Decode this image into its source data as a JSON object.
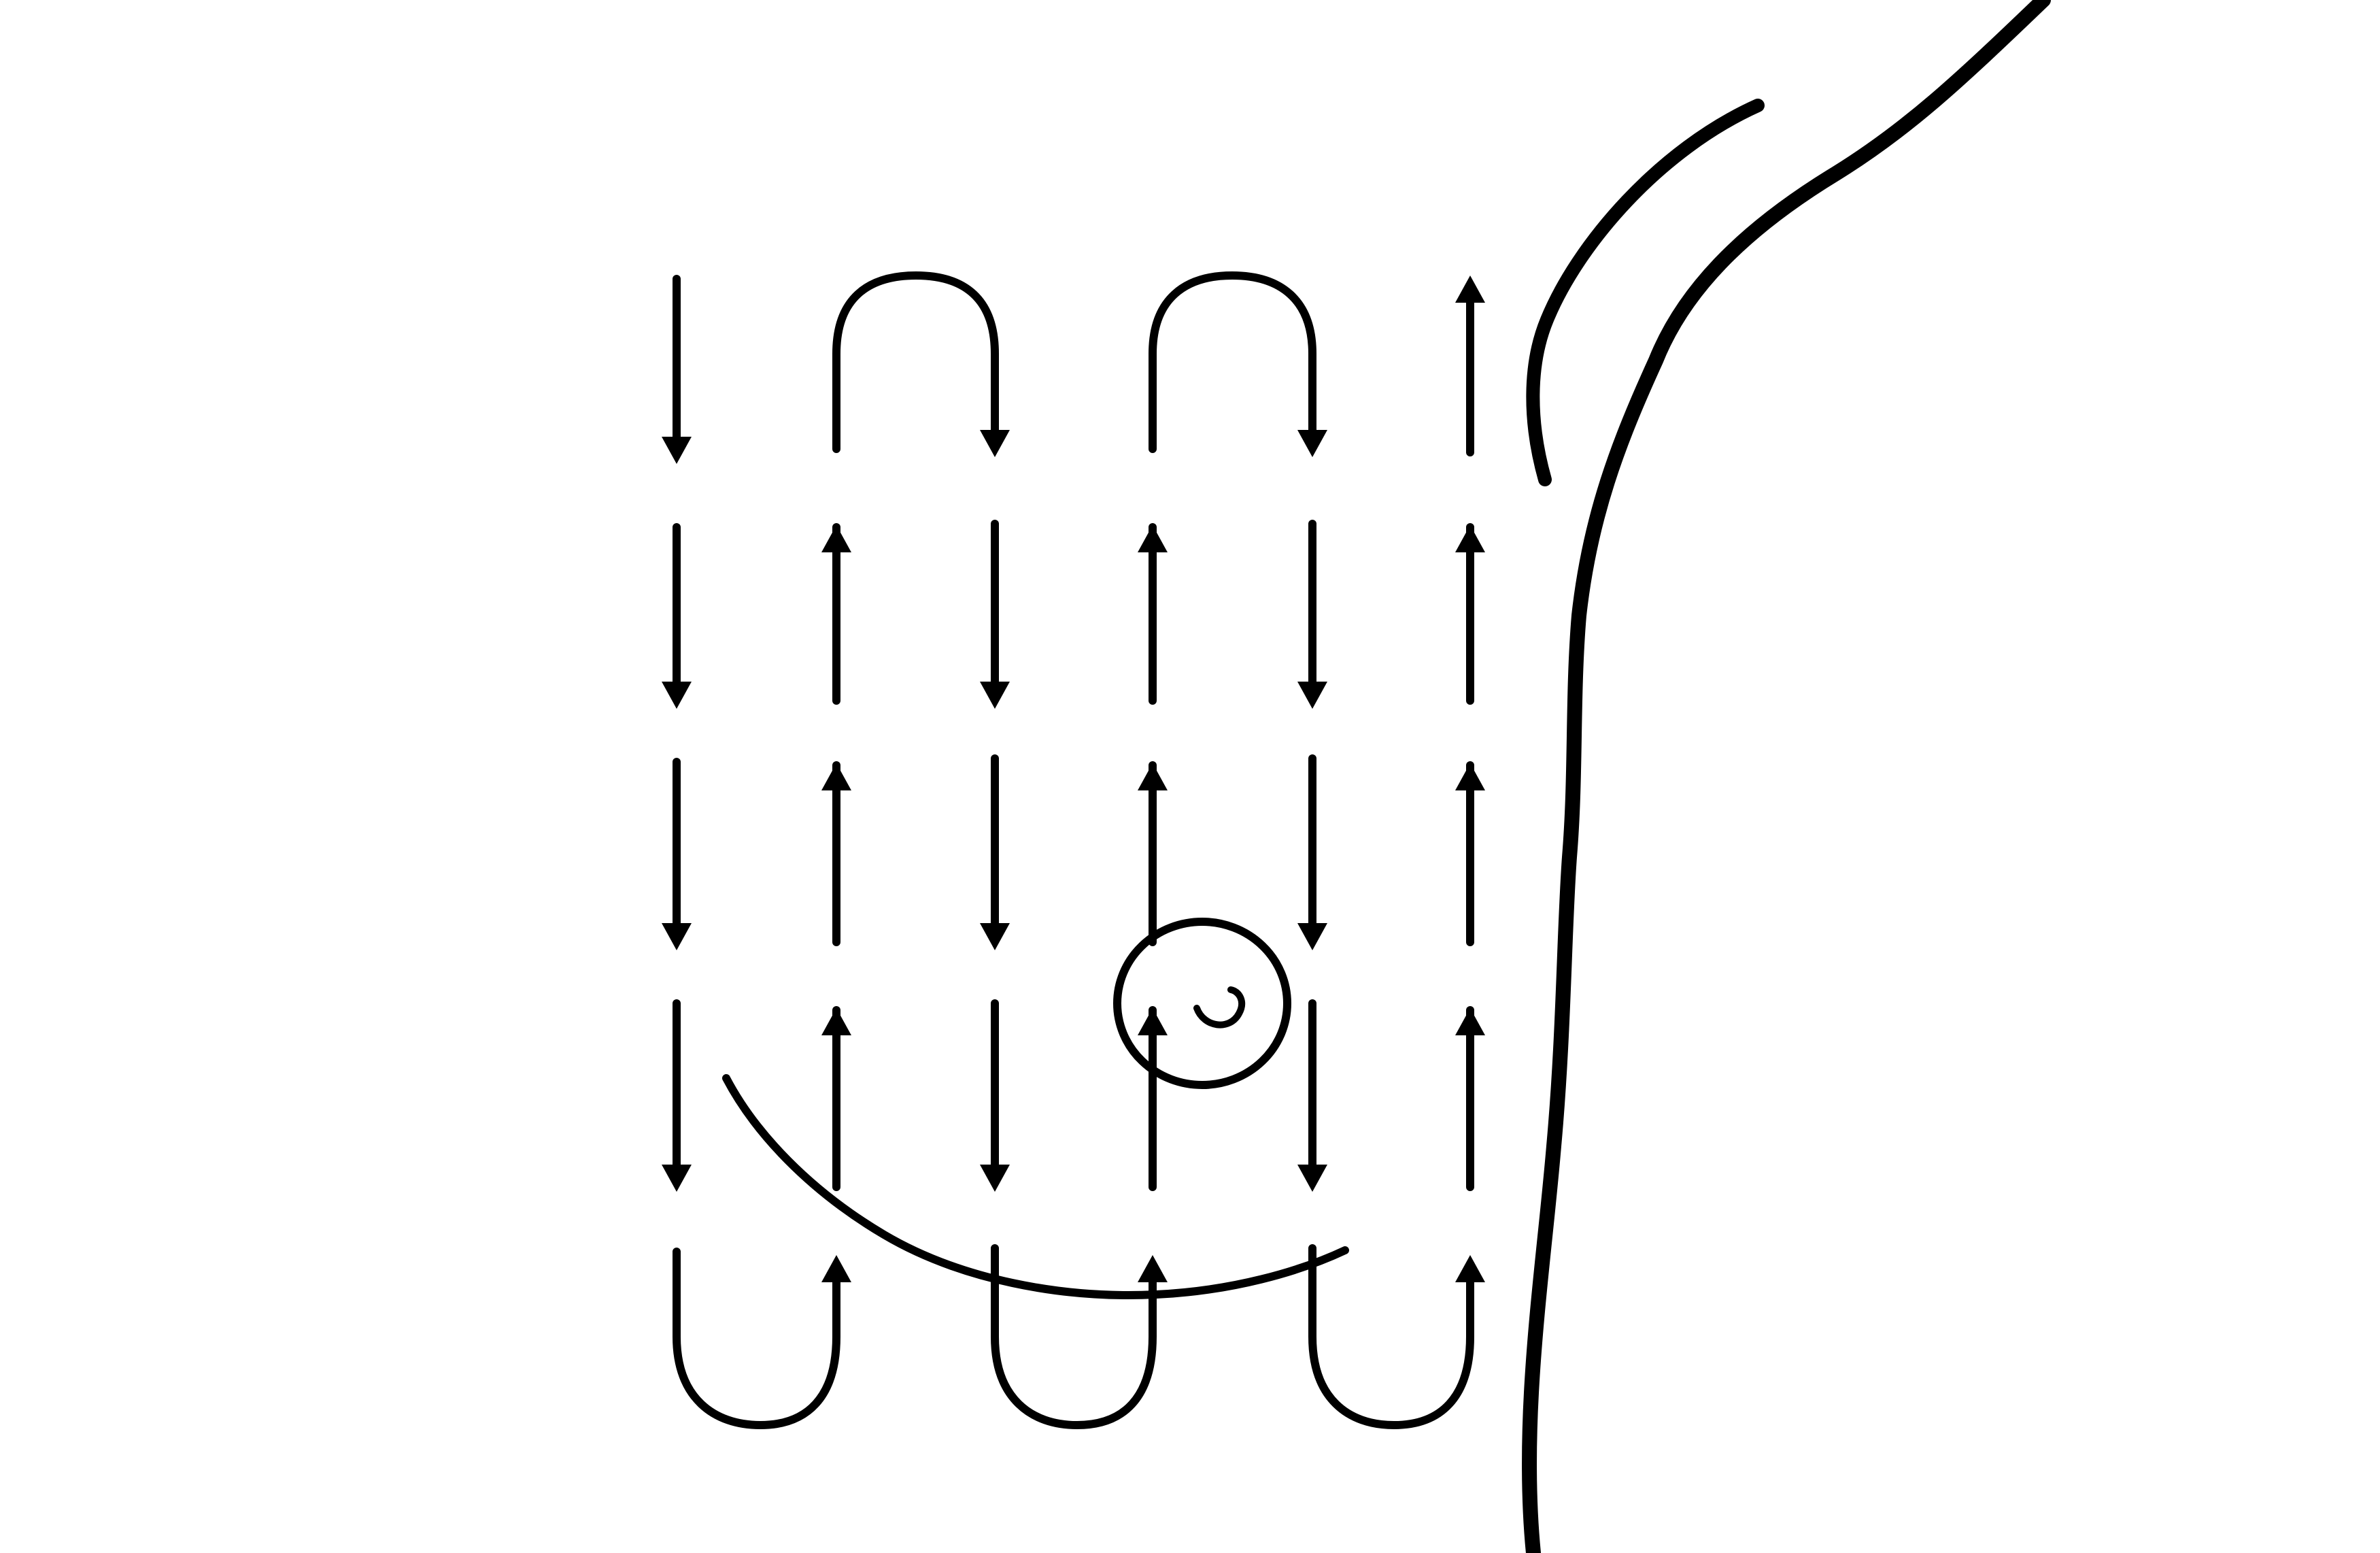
{
  "diagram": {
    "description_visible_text": "",
    "colors": {
      "background": "#ffffff",
      "ink": "#000000"
    },
    "pattern": {
      "name": "vertical-strip",
      "columns": [
        {
          "direction": "down"
        },
        {
          "direction": "up"
        },
        {
          "direction": "down"
        },
        {
          "direction": "up"
        },
        {
          "direction": "down"
        },
        {
          "direction": "up"
        }
      ],
      "rows": 5,
      "top_turns": [
        "columns-2-3",
        "columns-4-5"
      ],
      "bottom_turns": [
        "columns-1-2",
        "columns-3-4",
        "columns-5-6"
      ]
    },
    "anatomy": {
      "body_outline": "present",
      "breast_contour": "present",
      "nipple": "present"
    }
  }
}
